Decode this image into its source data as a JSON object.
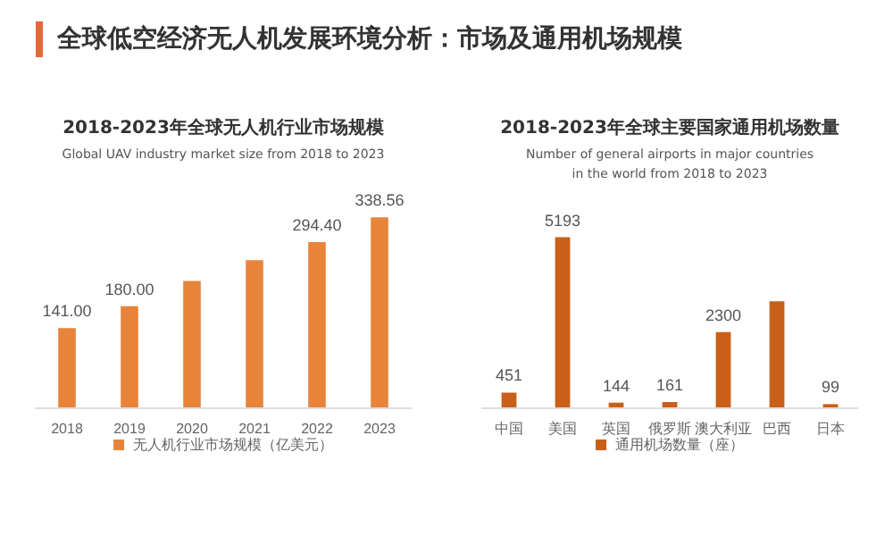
{
  "chart_data": [
    {
      "type": "bar",
      "title": "2018-2023年全球无人机行业市场规模",
      "subtitle": "Global UAV industry market size from 2018 to 2023",
      "annotations": [
        "全球低空经济无人机发展环境分析：市场及通用机场规模"
      ],
      "categories": [
        "2018",
        "2019",
        "2020",
        "2021",
        "2022",
        "2023"
      ],
      "series": [
        {
          "name": "无人机行业市场规模（亿美元）",
          "color": "#e8843a",
          "values": [
            141.0,
            180.0,
            225,
            262,
            294.4,
            338.56
          ],
          "value_labels": [
            "141.00",
            "180.00",
            null,
            null,
            "294.40",
            "338.56"
          ]
        }
      ],
      "legend": "bottom",
      "tick_labels": "x"
    },
    {
      "type": "bar",
      "title": "2018-2023年全球主要国家通用机场数量",
      "subtitle": "Number of general airports in major countries\nin the world from 2018 to 2023",
      "categories": [
        "中国",
        "美国",
        "英国",
        "俄罗斯",
        "澳大利亚",
        "巴西",
        "日本"
      ],
      "series": [
        {
          "name": "通用机场数量（座）",
          "color": "#c8601a",
          "values": [
            451,
            5193,
            144,
            161,
            2300,
            3240,
            99
          ],
          "value_labels": [
            "451",
            "5193",
            "144",
            "161",
            "2300",
            null,
            "99"
          ]
        }
      ],
      "legend": "bottom",
      "tick_labels": "x"
    }
  ]
}
